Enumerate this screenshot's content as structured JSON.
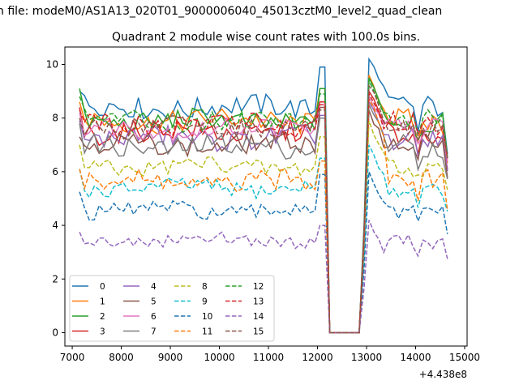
{
  "suptitle": "n file: modeM0/AS1A13_020T01_9000006040_45013cztM0_level2_quad_clean",
  "chart_data": {
    "type": "line",
    "title": "Quadrant 2 module wise count rates with 100.0s bins.",
    "xlabel": "",
    "ylabel": "",
    "x_offset_label": "+4.438e8",
    "xlim": [
      6850,
      15050
    ],
    "ylim": [
      -0.5,
      10.65
    ],
    "xticks": [
      7000,
      8000,
      9000,
      10000,
      11000,
      12000,
      13000,
      14000,
      15000
    ],
    "xtick_labels": [
      "7000",
      "8000",
      "9000",
      "10000",
      "11000",
      "12000",
      "13000",
      "14000",
      "15000"
    ],
    "yticks": [
      0,
      2,
      4,
      6,
      8,
      10
    ],
    "ytick_labels": [
      "0",
      "2",
      "4",
      "6",
      "8",
      "10"
    ],
    "legend_position": "lower-left",
    "legend_columns": 4,
    "gap": {
      "start": 12150,
      "end": 12950,
      "start_drop": 12250,
      "end_rise": 12850
    },
    "x_range": {
      "start": 7150,
      "end": 14650,
      "step": 100
    },
    "series": [
      {
        "name": "0",
        "color": "#1f77b4",
        "dash": "solid",
        "level": 8.4,
        "amp": 0.42,
        "wobble": 0.5,
        "start": 9.0,
        "peak": 9.9,
        "after": 10.2,
        "seed": 1
      },
      {
        "name": "1",
        "color": "#ff7f0e",
        "dash": "solid",
        "level": 7.9,
        "amp": 0.42,
        "wobble": 0.45,
        "start": 8.6,
        "peak": 9.1,
        "after": 9.6,
        "seed": 2
      },
      {
        "name": "2",
        "color": "#2ca02c",
        "dash": "solid",
        "level": 7.9,
        "amp": 0.38,
        "wobble": 0.4,
        "start": 9.1,
        "peak": 9.1,
        "after": 9.5,
        "seed": 3
      },
      {
        "name": "3",
        "color": "#d62728",
        "dash": "solid",
        "level": 7.5,
        "amp": 0.42,
        "wobble": 0.4,
        "start": 8.4,
        "peak": 8.6,
        "after": 9.0,
        "seed": 4
      },
      {
        "name": "4",
        "color": "#9467bd",
        "dash": "solid",
        "level": 7.25,
        "amp": 0.4,
        "wobble": 0.35,
        "start": 7.9,
        "peak": 8.1,
        "after": 8.6,
        "seed": 5
      },
      {
        "name": "5",
        "color": "#8c564b",
        "dash": "solid",
        "level": 7.0,
        "amp": 0.38,
        "wobble": 0.35,
        "start": 7.3,
        "peak": 8.4,
        "after": 8.3,
        "seed": 6
      },
      {
        "name": "6",
        "color": "#e377c2",
        "dash": "solid",
        "level": 7.6,
        "amp": 0.38,
        "wobble": 0.35,
        "start": 8.2,
        "peak": 8.5,
        "after": 8.8,
        "seed": 7
      },
      {
        "name": "7",
        "color": "#7f7f7f",
        "dash": "solid",
        "level": 6.95,
        "amp": 0.4,
        "wobble": 0.35,
        "start": 7.8,
        "peak": 8.0,
        "after": 8.5,
        "seed": 8
      },
      {
        "name": "8",
        "color": "#bcbd22",
        "dash": "dashed",
        "level": 6.2,
        "amp": 0.32,
        "wobble": 0.25,
        "start": 7.0,
        "peak": 7.3,
        "after": 7.9,
        "seed": 9
      },
      {
        "name": "9",
        "color": "#17becf",
        "dash": "dashed",
        "level": 5.4,
        "amp": 0.28,
        "wobble": 0.25,
        "start": 6.1,
        "peak": 6.5,
        "after": 7.0,
        "seed": 10
      },
      {
        "name": "10",
        "color": "#1f77b4",
        "dash": "dashed",
        "level": 4.55,
        "amp": 0.3,
        "wobble": 0.25,
        "start": 5.25,
        "peak": 5.9,
        "after": 6.0,
        "seed": 11
      },
      {
        "name": "11",
        "color": "#ff7f0e",
        "dash": "dashed",
        "level": 5.6,
        "amp": 0.38,
        "wobble": 0.3,
        "start": 6.1,
        "peak": 6.4,
        "after": 8.7,
        "seed": 12
      },
      {
        "name": "12",
        "color": "#2ca02c",
        "dash": "dashed",
        "level": 7.9,
        "amp": 0.38,
        "wobble": 0.4,
        "start": 8.8,
        "peak": 8.9,
        "after": 9.4,
        "seed": 13
      },
      {
        "name": "13",
        "color": "#d62728",
        "dash": "dashed",
        "level": 7.75,
        "amp": 0.4,
        "wobble": 0.35,
        "start": 8.3,
        "peak": 8.5,
        "after": 8.9,
        "seed": 14
      },
      {
        "name": "14",
        "color": "#9467bd",
        "dash": "dashed",
        "level": 3.45,
        "amp": 0.22,
        "wobble": 0.2,
        "start": 3.75,
        "peak": 4.0,
        "after": 4.2,
        "seed": 15
      },
      {
        "name": "15",
        "color": "#8c564b",
        "dash": "dashed",
        "level": 7.7,
        "amp": 0.38,
        "wobble": 0.35,
        "start": 8.0,
        "peak": 8.3,
        "after": 9.2,
        "seed": 16
      }
    ]
  }
}
